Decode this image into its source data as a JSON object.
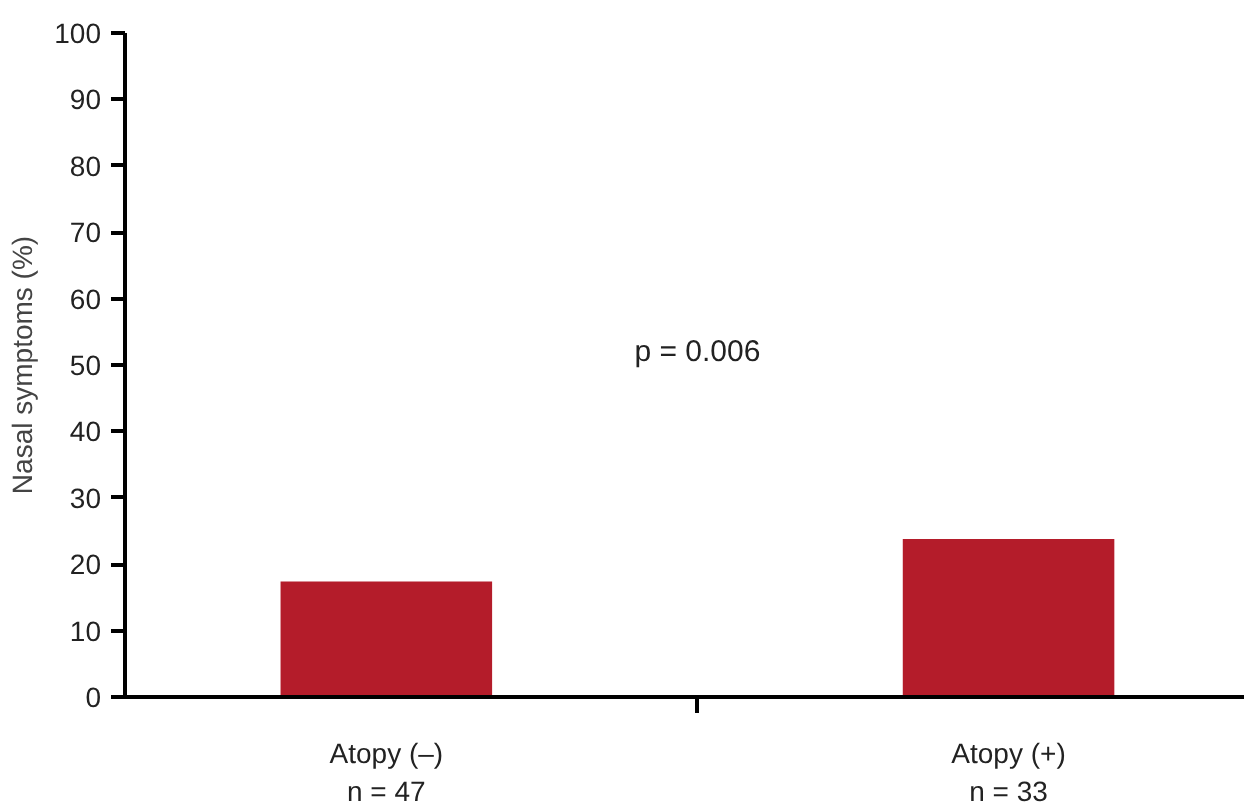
{
  "chart_data": {
    "type": "bar",
    "ylabel": "Nasal symptoms (%)",
    "categories": [
      "Atopy (–)\nn = 47",
      "Atopy (+)\nn = 33"
    ],
    "values": [
      17.4,
      23.8
    ],
    "color": "#b41c2a",
    "ylim": [
      0,
      100
    ],
    "yticks": [
      0,
      10,
      20,
      30,
      40,
      50,
      60,
      70,
      80,
      90,
      100
    ],
    "grid": false,
    "annotations": [
      "p = 0.006"
    ]
  }
}
